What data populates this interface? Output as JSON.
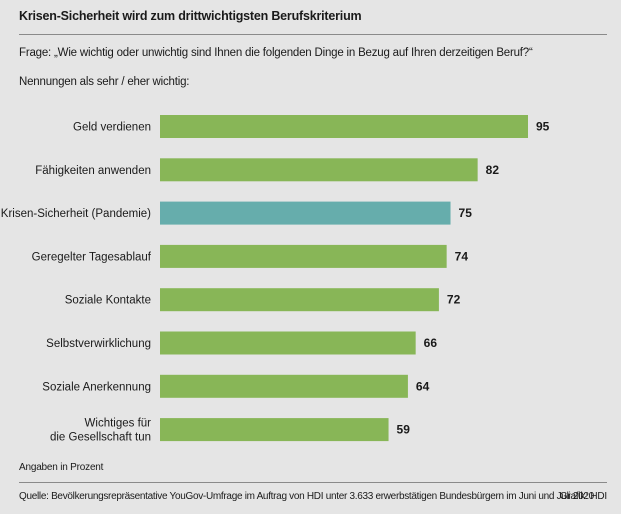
{
  "header": {
    "title": "Krisen-Sicherheit wird zum drittwichtigsten Berufskriterium",
    "question": "Frage: „Wie wichtig oder unwichtig sind Ihnen die folgenden Dinge in Bezug auf Ihren derzeitigen Beruf?“",
    "subtitle": "Nennungen als sehr / eher wichtig:"
  },
  "footer": {
    "unit_note": "Angaben in Prozent",
    "source": "Quelle: Bevölkerungsrepräsentative YouGov-Umfrage im Auftrag von HDI unter 3.633 erwerbstätigen Bundesbürgern im Juni und Juli 2020",
    "credit": "Grafik: HDI"
  },
  "colors": {
    "default_bar": "#88b657",
    "highlight_bar": "#66adac",
    "background": "#e5e5e5"
  },
  "chart_data": {
    "type": "bar",
    "orientation": "horizontal",
    "title": "Krisen-Sicherheit wird zum drittwichtigsten Berufskriterium",
    "xlabel": "",
    "ylabel": "",
    "unit": "Prozent",
    "xlim": [
      0,
      100
    ],
    "grid": false,
    "legend": "none",
    "categories": [
      [
        "Geld verdienen"
      ],
      [
        "Fähigkeiten anwenden"
      ],
      [
        "Krisen-Sicherheit (Pandemie)"
      ],
      [
        "Geregelter Tagesablauf"
      ],
      [
        "Soziale Kontakte"
      ],
      [
        "Selbstverwirklichung"
      ],
      [
        "Soziale Anerkennung"
      ],
      [
        "Wichtiges für",
        "die Gesellschaft tun"
      ]
    ],
    "values": [
      95,
      82,
      75,
      74,
      72,
      66,
      64,
      59
    ],
    "highlighted_index": 2
  }
}
